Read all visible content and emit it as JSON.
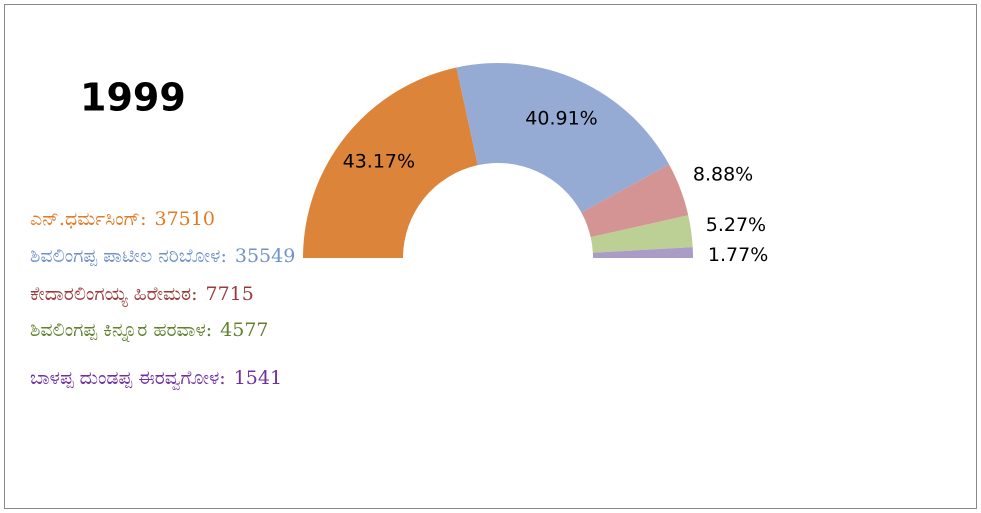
{
  "chart_data": {
    "type": "half-donut",
    "title": "1999",
    "categories": [
      "ಎನ್.ಧರ್ಮಸಿಂಗ್:",
      "ಶಿವಲಿಂಗಪ್ಪ ಪಾಟೀಲ ನರಿಬೋಳ:",
      "ಕೇದಾರಲಿಂಗಯ್ಯ ಹಿರೇಮಠ:",
      "ಶಿವಲಿಂಗಪ್ಪ ಕಿನ್ನೂರ ಹರವಾಳ:",
      "ಬಾಳಪ್ಪ ದುಂಡಪ್ಪ ಈರವ್ವಗೋಳ:"
    ],
    "votes": [
      37510,
      35549,
      7715,
      4577,
      1541
    ],
    "values": [
      43.17,
      40.91,
      8.88,
      5.27,
      1.77
    ],
    "value_labels": [
      "43.17%",
      "40.91%",
      "8.88%",
      "5.27%",
      "1.77%"
    ],
    "colors": [
      "#dd843b",
      "#95abd4",
      "#d49494",
      "#bccf94",
      "#a99cc7"
    ],
    "legend_colors": [
      "#e07b27",
      "#6f93c9",
      "#9b3a3a",
      "#62802f",
      "#7030a0"
    ]
  }
}
